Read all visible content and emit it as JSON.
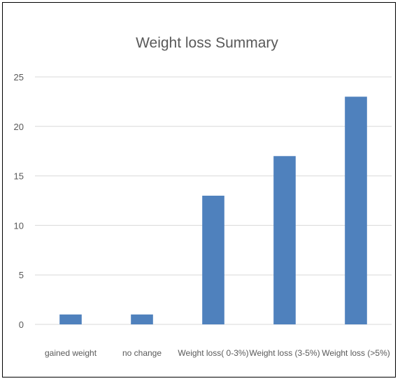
{
  "chart_data": {
    "type": "bar",
    "title": "Weight loss Summary",
    "categories": [
      "gained weight",
      "no change",
      "Weight loss( 0-3%)",
      "Weight loss (3-5%)",
      "Weight loss (>5%)"
    ],
    "values": [
      1,
      1,
      13,
      17,
      23
    ],
    "ylim": [
      0,
      25
    ],
    "yticks": [
      0,
      5,
      10,
      15,
      20,
      25
    ],
    "xlabel": "",
    "ylabel": "",
    "grid": true,
    "legend": "none",
    "bar_color": "#4f81bd"
  }
}
